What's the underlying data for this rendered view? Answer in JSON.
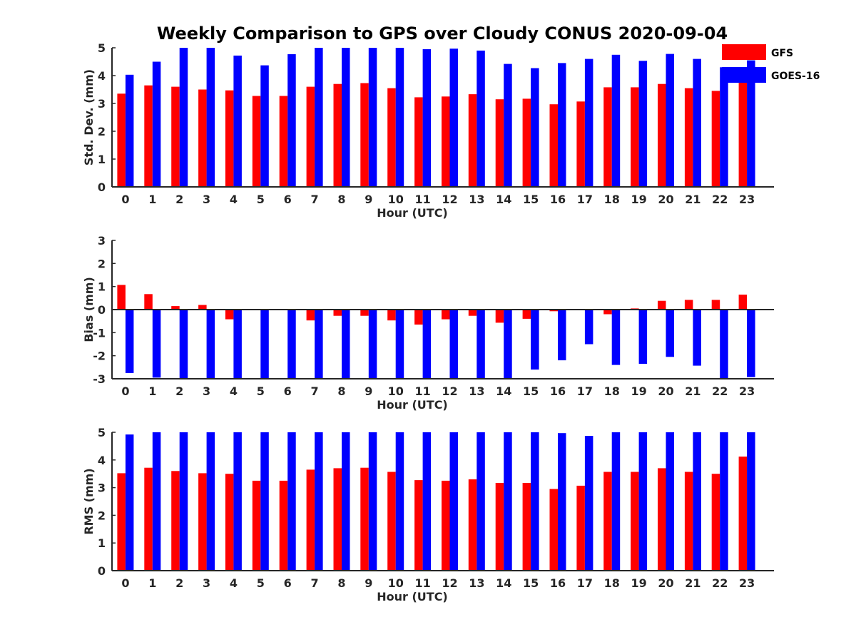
{
  "title": "Weekly Comparison to GPS over Cloudy CONUS 2020-09-04",
  "legend": {
    "placement": "top-right",
    "items": [
      {
        "label": "GFS",
        "color": "#ff0000"
      },
      {
        "label": "GOES-16",
        "color": "#0000ff"
      }
    ]
  },
  "chart_data": [
    {
      "type": "bar",
      "xlabel": "Hour (UTC)",
      "ylabel": "Std. Dev. (mm)",
      "ylim": [
        0,
        5
      ],
      "yticks": [
        0,
        1,
        2,
        3,
        4,
        5
      ],
      "categories": [
        "0",
        "1",
        "2",
        "3",
        "4",
        "5",
        "6",
        "7",
        "8",
        "9",
        "10",
        "11",
        "12",
        "13",
        "14",
        "15",
        "16",
        "17",
        "18",
        "19",
        "20",
        "21",
        "22",
        "23"
      ],
      "series": [
        {
          "name": "GFS",
          "color": "#ff0000",
          "values": [
            3.35,
            3.65,
            3.6,
            3.5,
            3.47,
            3.27,
            3.27,
            3.6,
            3.7,
            3.73,
            3.55,
            3.22,
            3.25,
            3.33,
            3.15,
            3.17,
            2.97,
            3.07,
            3.58,
            3.58,
            3.7,
            3.55,
            3.45,
            3.9
          ]
        },
        {
          "name": "GOES-16",
          "color": "#0000ff",
          "values": [
            4.03,
            4.5,
            5,
            5,
            4.72,
            4.37,
            4.77,
            5,
            5,
            5,
            5,
            4.95,
            4.97,
            4.9,
            4.42,
            4.27,
            4.45,
            4.6,
            4.75,
            4.53,
            4.78,
            4.6,
            4.3,
            4.55
          ]
        }
      ]
    },
    {
      "type": "bar",
      "xlabel": "Hour (UTC)",
      "ylabel": "Bias (mm)",
      "ylim": [
        -3,
        3
      ],
      "yticks": [
        -3,
        -2,
        -1,
        0,
        1,
        2,
        3
      ],
      "categories": [
        "0",
        "1",
        "2",
        "3",
        "4",
        "5",
        "6",
        "7",
        "8",
        "9",
        "10",
        "11",
        "12",
        "13",
        "14",
        "15",
        "16",
        "17",
        "18",
        "19",
        "20",
        "21",
        "22",
        "23"
      ],
      "series": [
        {
          "name": "GFS",
          "color": "#ff0000",
          "values": [
            1.07,
            0.67,
            0.15,
            0.2,
            -0.42,
            -0.02,
            -0.02,
            -0.47,
            -0.27,
            -0.27,
            -0.47,
            -0.65,
            -0.42,
            -0.27,
            -0.57,
            -0.4,
            -0.07,
            -0.02,
            -0.2,
            0.05,
            0.38,
            0.42,
            0.42,
            0.65
          ]
        },
        {
          "name": "GOES-16",
          "color": "#0000ff",
          "values": [
            -2.75,
            -2.95,
            -3,
            -3,
            -3,
            -3,
            -3,
            -3,
            -3,
            -3,
            -3,
            -3,
            -3,
            -3,
            -3,
            -2.6,
            -2.2,
            -1.5,
            -2.4,
            -2.35,
            -2.05,
            -2.43,
            -3,
            -2.93
          ]
        }
      ]
    },
    {
      "type": "bar",
      "xlabel": "Hour (UTC)",
      "ylabel": "RMS (mm)",
      "ylim": [
        0,
        5
      ],
      "yticks": [
        0,
        1,
        2,
        3,
        4,
        5
      ],
      "categories": [
        "0",
        "1",
        "2",
        "3",
        "4",
        "5",
        "6",
        "7",
        "8",
        "9",
        "10",
        "11",
        "12",
        "13",
        "14",
        "15",
        "16",
        "17",
        "18",
        "19",
        "20",
        "21",
        "22",
        "23"
      ],
      "series": [
        {
          "name": "GFS",
          "color": "#ff0000",
          "values": [
            3.52,
            3.72,
            3.6,
            3.52,
            3.5,
            3.25,
            3.25,
            3.65,
            3.7,
            3.72,
            3.57,
            3.27,
            3.25,
            3.3,
            3.17,
            3.17,
            2.95,
            3.07,
            3.57,
            3.57,
            3.7,
            3.57,
            3.5,
            4.12
          ]
        },
        {
          "name": "GOES-16",
          "color": "#0000ff",
          "values": [
            4.92,
            5,
            5,
            5,
            5,
            5,
            5,
            5,
            5,
            5,
            5,
            5,
            5,
            5,
            5,
            5,
            4.97,
            4.87,
            5,
            5,
            5,
            5,
            5,
            5
          ]
        }
      ]
    }
  ]
}
